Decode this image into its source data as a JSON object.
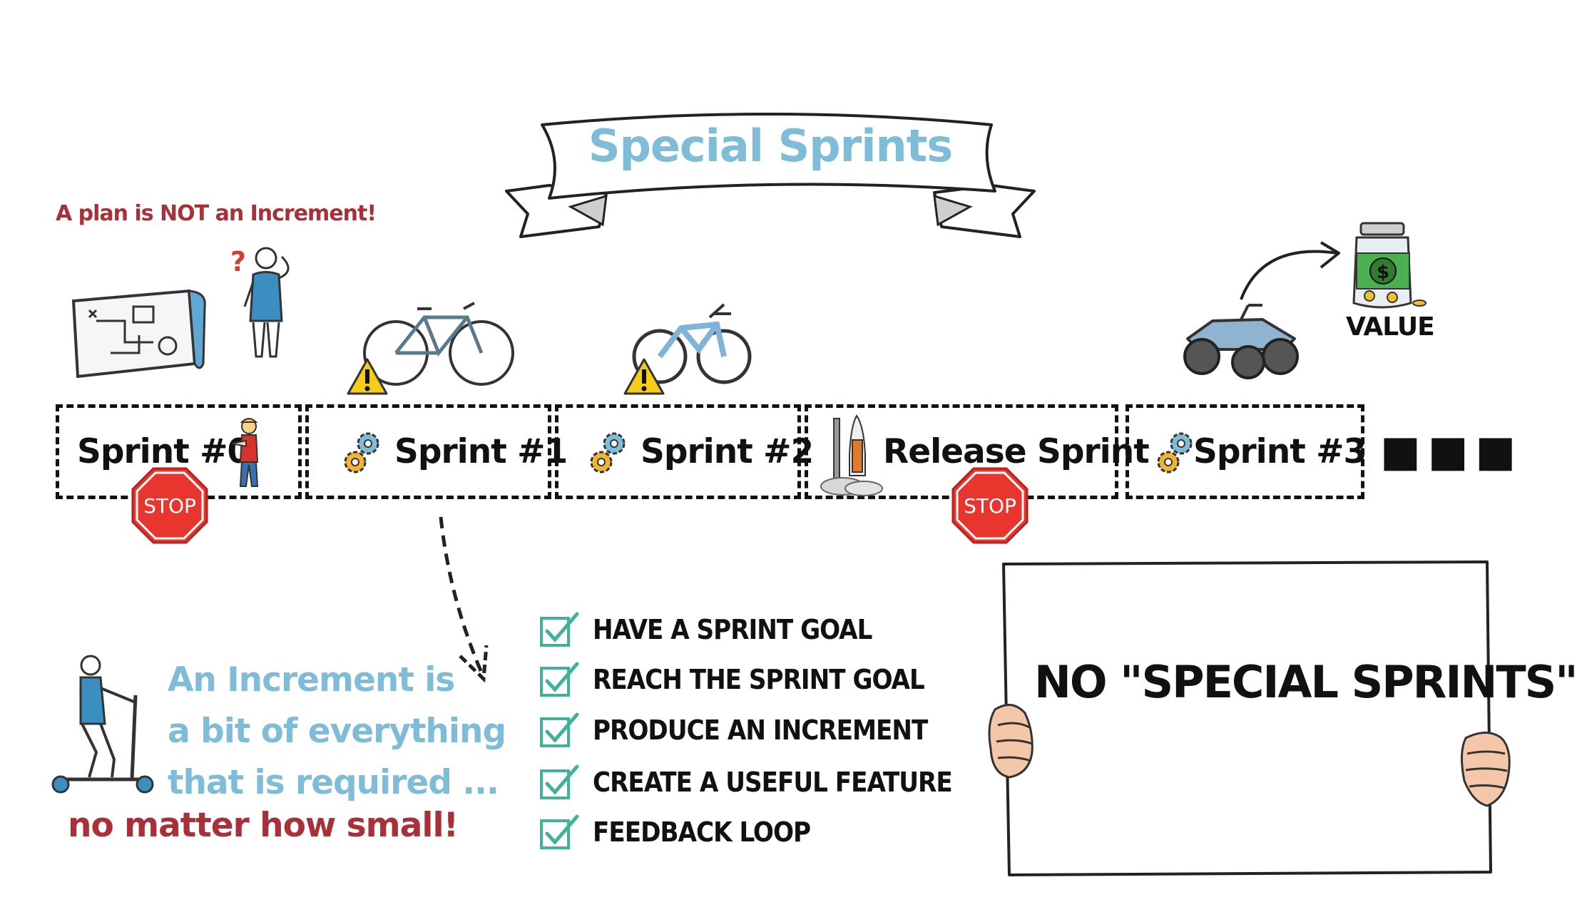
{
  "title": "Special Sprints",
  "plan_note": "A plan is NOT an Increment!",
  "sprints": [
    {
      "label": "Sprint #0",
      "stop": true
    },
    {
      "label": "Sprint #1",
      "stop": false
    },
    {
      "label": "Sprint #2",
      "stop": false
    },
    {
      "label": "Release Sprint",
      "stop": true
    },
    {
      "label": "Sprint #3",
      "stop": false
    }
  ],
  "stop_label": "STOP",
  "continuation": "■■■",
  "value_label": "VALUE",
  "increment_lines": [
    "An Increment is",
    "a bit of everything",
    "that is required ..."
  ],
  "increment_emphasis": "no matter how small!",
  "checklist": [
    "HAVE A SPRINT GOAL",
    "REACH THE SPRINT GOAL",
    "PRODUCE AN INCREMENT",
    "CREATE A USEFUL FEATURE",
    "FEEDBACK LOOP"
  ],
  "sign_text": "NO \"SPECIAL SPRINTS\"",
  "colors": {
    "title": "#7fbcd8",
    "accent_red": "#a83038",
    "stop_sign": "#e8352d",
    "check": "#3fb39a",
    "warning": "#f4cc1c"
  }
}
